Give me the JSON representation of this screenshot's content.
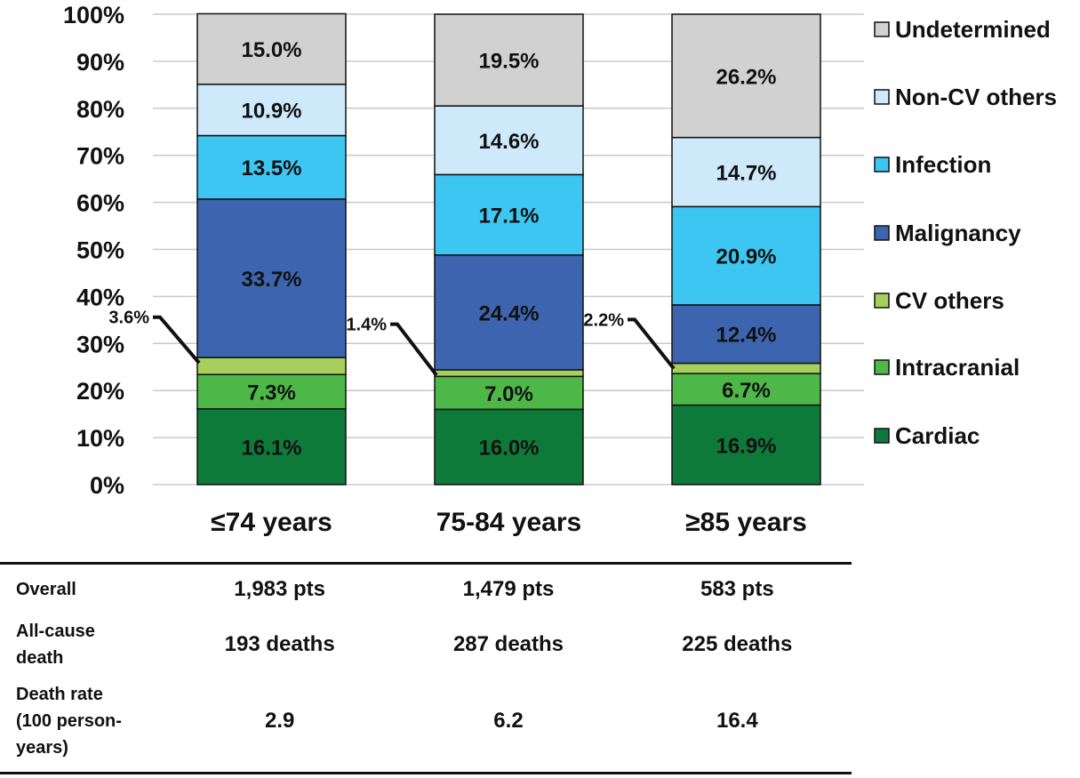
{
  "chart_data": {
    "type": "bar",
    "stacked": true,
    "ylim": [
      0,
      100
    ],
    "yticks": [
      "0%",
      "10%",
      "20%",
      "30%",
      "40%",
      "50%",
      "60%",
      "70%",
      "80%",
      "90%",
      "100%"
    ],
    "categories": [
      "≤74 years",
      "75-84 years",
      "≥85 years"
    ],
    "series": [
      {
        "name": "Cardiac",
        "color": "#0e7a3a",
        "values": [
          16.1,
          16.0,
          16.9
        ],
        "labels": [
          "16.1%",
          "16.0%",
          "16.9%"
        ]
      },
      {
        "name": "Intracranial",
        "color": "#4db848",
        "values": [
          7.3,
          7.0,
          6.7
        ],
        "labels": [
          "7.3%",
          "7.0%",
          "6.7%"
        ]
      },
      {
        "name": "CV others",
        "color": "#a6cf5b",
        "values": [
          3.6,
          1.4,
          2.2
        ],
        "labels": [
          "3.6%",
          "1.4%",
          "2.2%"
        ]
      },
      {
        "name": "Malignancy",
        "color": "#3d64ae",
        "values": [
          33.7,
          24.4,
          12.4
        ],
        "labels": [
          "33.7%",
          "24.4%",
          "12.4%"
        ]
      },
      {
        "name": "Infection",
        "color": "#3cc6f1",
        "values": [
          13.5,
          17.1,
          20.9
        ],
        "labels": [
          "13.5%",
          "17.1%",
          "20.9%"
        ]
      },
      {
        "name": "Non-CV others",
        "color": "#cde9fa",
        "values": [
          10.9,
          14.6,
          14.7
        ],
        "labels": [
          "10.9%",
          "14.6%",
          "14.7%"
        ]
      },
      {
        "name": "Undetermined",
        "color": "#d1d1d1",
        "values": [
          15.0,
          19.5,
          26.2
        ],
        "labels": [
          "15.0%",
          "19.5%",
          "26.2%"
        ]
      }
    ],
    "legend_position": "right",
    "grid": true,
    "callout_series": "CV others"
  },
  "table": {
    "rows": [
      {
        "label": [
          "Overall"
        ],
        "values": [
          "1,983 pts",
          "1,479 pts",
          "583 pts"
        ]
      },
      {
        "label": [
          "All-cause",
          "death"
        ],
        "values": [
          "193 deaths",
          "287 deaths",
          "225 deaths"
        ]
      },
      {
        "label": [
          "Death rate",
          "(100 person-",
          "years)"
        ],
        "values": [
          "2.9",
          "6.2",
          "16.4"
        ]
      }
    ]
  }
}
